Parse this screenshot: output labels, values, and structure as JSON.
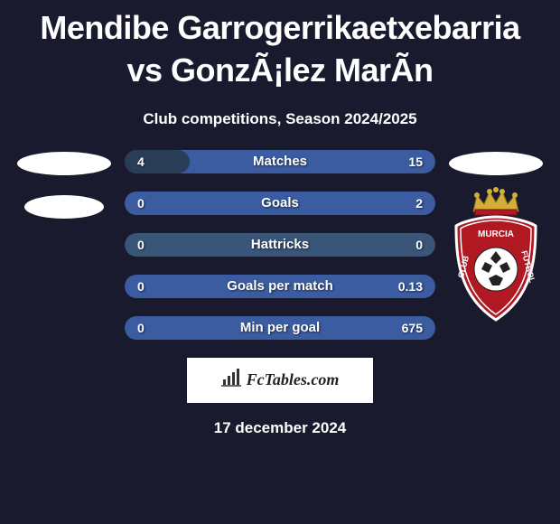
{
  "title": "Mendibe Garrogerrikaetxebarria vs GonzÃ¡lez MarÃ­n",
  "subtitle": "Club competitions, Season 2024/2025",
  "date": "17 december 2024",
  "logo_text": "FcTables.com",
  "colors": {
    "background": "#1a1a2e",
    "bar_bg": "#395578",
    "bar_fill_dark": "#2a3d56",
    "bar_fill_blue": "#3b5ca0",
    "text": "#ffffff",
    "badge_red": "#b01822",
    "badge_gold": "#d4af37",
    "logo_bg": "#ffffff"
  },
  "badge_text_top": "MURCIA",
  "badge_text_mid": "CLUB",
  "badge_text_bot": "FUTBOL",
  "stats": [
    {
      "label": "Matches",
      "left_val": "4",
      "right_val": "15",
      "left_pct": 21,
      "right_pct": 100,
      "fill_side": "both"
    },
    {
      "label": "Goals",
      "left_val": "0",
      "right_val": "2",
      "left_pct": 0,
      "right_pct": 100,
      "fill_side": "right"
    },
    {
      "label": "Hattricks",
      "left_val": "0",
      "right_val": "0",
      "left_pct": 0,
      "right_pct": 0,
      "fill_side": "none"
    },
    {
      "label": "Goals per match",
      "left_val": "0",
      "right_val": "0.13",
      "left_pct": 0,
      "right_pct": 100,
      "fill_side": "right"
    },
    {
      "label": "Min per goal",
      "left_val": "0",
      "right_val": "675",
      "left_pct": 0,
      "right_pct": 100,
      "fill_side": "right"
    }
  ]
}
